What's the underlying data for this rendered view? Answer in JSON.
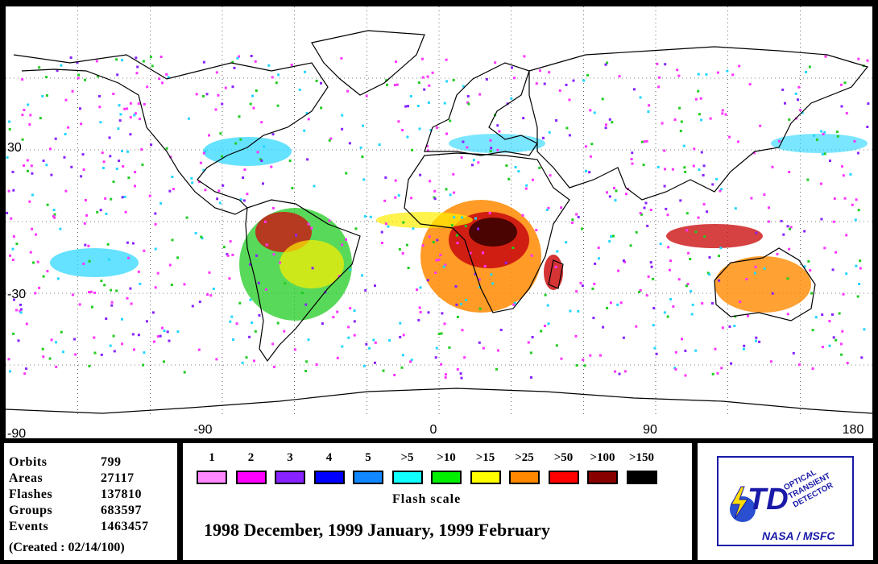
{
  "map": {
    "x_ticks": [
      "-90",
      "0",
      "90",
      "180"
    ],
    "y_ticks": [
      "30",
      "-30",
      "-90"
    ],
    "colors": {
      "land_outline": "#000000",
      "grid": "#000000",
      "hot": "#cc1111",
      "warm": "#ff8a00",
      "mid": "#ffee00",
      "cool": "#22cc22",
      "cold": "#22d6ff",
      "sparse": "#ff33ff"
    }
  },
  "stats": {
    "items": [
      {
        "label": "Orbits",
        "value": "799"
      },
      {
        "label": "Areas",
        "value": "27117"
      },
      {
        "label": "Flashes",
        "value": "137810"
      },
      {
        "label": "Groups",
        "value": "683597"
      },
      {
        "label": "Events",
        "value": "1463457"
      }
    ],
    "created": "(Created : 02/14/100)"
  },
  "legend": {
    "title": "Flash scale",
    "period": "1998 December, 1999 January, 1999 February",
    "items": [
      {
        "label": "1",
        "color": "#ff88ff"
      },
      {
        "label": "2",
        "color": "#ff00ff"
      },
      {
        "label": "3",
        "color": "#8822ff"
      },
      {
        "label": "4",
        "color": "#0000ff"
      },
      {
        "label": "5",
        "color": "#1188ff"
      },
      {
        "label": ">5",
        "color": "#11ffff"
      },
      {
        "label": ">10",
        "color": "#00ee00"
      },
      {
        "label": ">15",
        "color": "#ffff00"
      },
      {
        "label": ">25",
        "color": "#ff8800"
      },
      {
        "label": ">50",
        "color": "#ff0000"
      },
      {
        "label": ">100",
        "color": "#880000"
      },
      {
        "label": ">150",
        "color": "#000000"
      }
    ]
  },
  "logo": {
    "line1": "OPTICAL",
    "line2": "TRANSIENT",
    "line3": "DETECTOR",
    "mark": "TD",
    "caption": "NASA / MSFC"
  }
}
